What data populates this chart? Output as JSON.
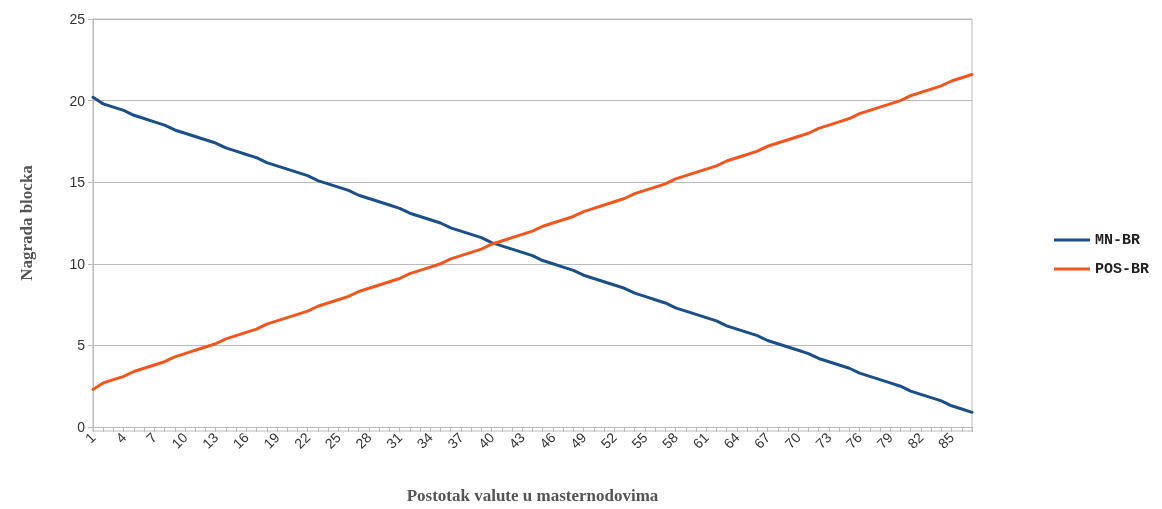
{
  "chart_data": {
    "type": "line",
    "xlabel": "Postotak valute u masternodovima",
    "ylabel": "Nagrada blocka",
    "categories": [
      "1",
      null,
      null,
      "4",
      null,
      null,
      "7",
      null,
      null,
      "10",
      null,
      null,
      "13",
      null,
      null,
      "16",
      null,
      null,
      "19",
      null,
      null,
      "22",
      null,
      null,
      "25",
      null,
      null,
      "28",
      null,
      null,
      "31",
      null,
      null,
      "34",
      null,
      null,
      "37",
      null,
      null,
      "40",
      null,
      null,
      "43",
      null,
      null,
      "46",
      null,
      null,
      "49",
      null,
      null,
      "52",
      null,
      null,
      "55",
      null,
      null,
      "58",
      null,
      null,
      "61",
      null,
      null,
      "64",
      null,
      null,
      "67",
      null,
      null,
      "70",
      null,
      null,
      "73",
      null,
      null,
      "76",
      null,
      null,
      "79",
      null,
      null,
      "82",
      null,
      null,
      "85",
      null,
      null
    ],
    "series": [
      {
        "name": "MN-BR",
        "color": "#1b4f8a",
        "values": [
          20.2,
          19.8,
          19.6,
          19.4,
          19.1,
          18.9,
          18.7,
          18.5,
          18.2,
          18.0,
          17.8,
          17.6,
          17.4,
          17.1,
          16.9,
          16.7,
          16.5,
          16.2,
          16.0,
          15.8,
          15.6,
          15.4,
          15.1,
          14.9,
          14.7,
          14.5,
          14.2,
          14.0,
          13.8,
          13.6,
          13.4,
          13.1,
          12.9,
          12.7,
          12.5,
          12.2,
          12.0,
          11.8,
          11.6,
          11.3,
          11.1,
          10.9,
          10.7,
          10.5,
          10.2,
          10.0,
          9.8,
          9.6,
          9.3,
          9.1,
          8.9,
          8.7,
          8.5,
          8.2,
          8.0,
          7.8,
          7.6,
          7.3,
          7.1,
          6.9,
          6.7,
          6.5,
          6.2,
          6.0,
          5.8,
          5.6,
          5.3,
          5.1,
          4.9,
          4.7,
          4.5,
          4.2,
          4.0,
          3.8,
          3.6,
          3.3,
          3.1,
          2.9,
          2.7,
          2.5,
          2.2,
          2.0,
          1.8,
          1.6,
          1.3,
          1.1,
          0.9
        ]
      },
      {
        "name": "POS-BR",
        "color": "#f0561d",
        "values": [
          2.3,
          2.7,
          2.9,
          3.1,
          3.4,
          3.6,
          3.8,
          4.0,
          4.3,
          4.5,
          4.7,
          4.9,
          5.1,
          5.4,
          5.6,
          5.8,
          6.0,
          6.3,
          6.5,
          6.7,
          6.9,
          7.1,
          7.4,
          7.6,
          7.8,
          8.0,
          8.3,
          8.5,
          8.7,
          8.9,
          9.1,
          9.4,
          9.6,
          9.8,
          10.0,
          10.3,
          10.5,
          10.7,
          10.9,
          11.2,
          11.4,
          11.6,
          11.8,
          12.0,
          12.3,
          12.5,
          12.7,
          12.9,
          13.2,
          13.4,
          13.6,
          13.8,
          14.0,
          14.3,
          14.5,
          14.7,
          14.9,
          15.2,
          15.4,
          15.6,
          15.8,
          16.0,
          16.3,
          16.5,
          16.7,
          16.9,
          17.2,
          17.4,
          17.6,
          17.8,
          18.0,
          18.3,
          18.5,
          18.7,
          18.9,
          19.2,
          19.4,
          19.6,
          19.8,
          20.0,
          20.3,
          20.5,
          20.7,
          20.9,
          21.2,
          21.4,
          21.6
        ]
      }
    ],
    "ylim": [
      0,
      25
    ],
    "yticks": [
      0,
      5,
      10,
      15,
      20,
      25
    ],
    "grid": "y",
    "legend": "right",
    "marker": "none",
    "line_style": "solid"
  }
}
